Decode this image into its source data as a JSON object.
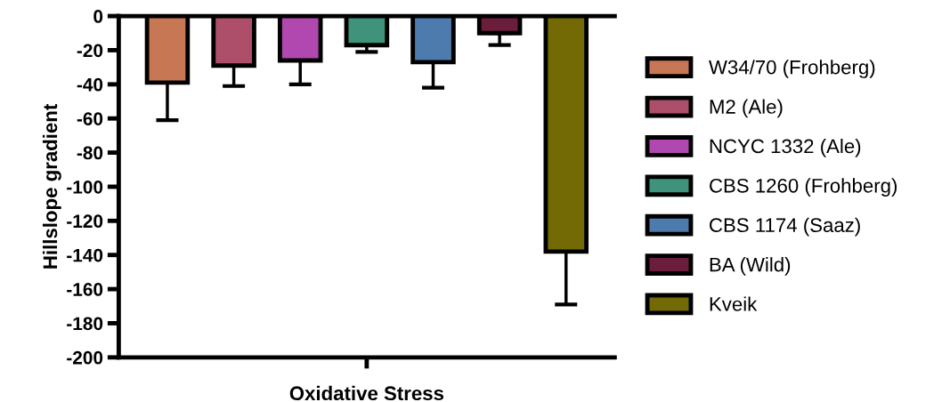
{
  "chart_data": {
    "type": "bar",
    "categories": [
      "Oxidative Stress"
    ],
    "ylabel": "Hillslope gradient",
    "ylim": [
      -200,
      0
    ],
    "yticks": [
      0,
      -20,
      -40,
      -60,
      -80,
      -100,
      -120,
      -140,
      -160,
      -180,
      -200
    ],
    "grid": false,
    "legend": "right",
    "series": [
      {
        "name": "W34/70 (Frohberg)",
        "color": "#c87755",
        "values": [
          -39
        ],
        "errors": [
          [
            -61,
            -39
          ]
        ]
      },
      {
        "name": "M2 (Ale)",
        "color": "#ad4f6b",
        "values": [
          -29
        ],
        "errors": [
          [
            -41,
            -29
          ]
        ]
      },
      {
        "name": "NCYC 1332 (Ale)",
        "color": "#b148b0",
        "values": [
          -26
        ],
        "errors": [
          [
            -40,
            -26
          ]
        ]
      },
      {
        "name": "CBS 1260 (Frohberg)",
        "color": "#3f937a",
        "values": [
          -17
        ],
        "errors": [
          [
            -21,
            -17
          ]
        ]
      },
      {
        "name": "CBS 1174 (Saaz)",
        "color": "#4e7bae",
        "values": [
          -27
        ],
        "errors": [
          [
            -42,
            -27
          ]
        ]
      },
      {
        "name": "BA (Wild)",
        "color": "#6b1e3b",
        "values": [
          -10
        ],
        "errors": [
          [
            -17,
            -10
          ]
        ]
      },
      {
        "name": "Kveik",
        "color": "#736a05",
        "values": [
          -138
        ],
        "errors": [
          [
            -169,
            -138
          ]
        ]
      }
    ]
  }
}
